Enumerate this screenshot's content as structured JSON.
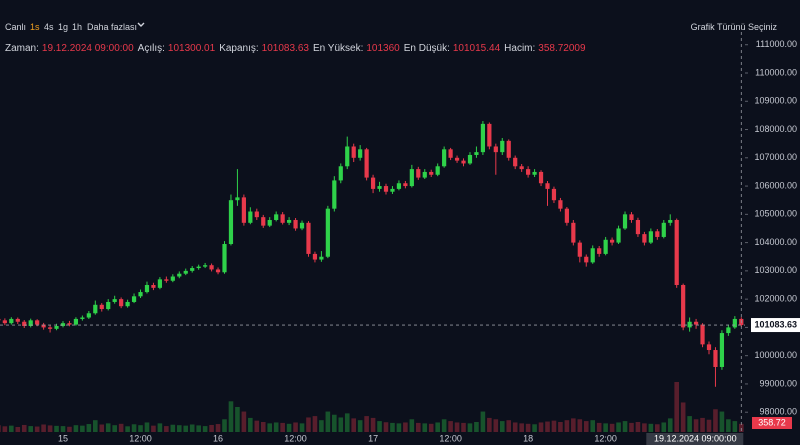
{
  "toolbar": {
    "live": "Canlı",
    "intervals": [
      "1s",
      "4s",
      "1g",
      "1h"
    ],
    "more": "Daha fazlası",
    "chart_type": "Grafik Türünü Seçiniz"
  },
  "info": [
    {
      "label": "Zaman:",
      "value": "19.12.2024 09:00:00"
    },
    {
      "label": "Açılış:",
      "value": "101300.01"
    },
    {
      "label": "Kapanış:",
      "value": "101083.63"
    },
    {
      "label": "En Yüksek:",
      "value": "101360"
    },
    {
      "label": "En Düşük:",
      "value": "101015.44"
    },
    {
      "label": "Hacim:",
      "value": "358.72009"
    }
  ],
  "crosshair": {
    "time_label": "19.12.2024 09:00:00",
    "price_label": "101083.63",
    "volume_label": "358.72"
  },
  "chart_data": {
    "type": "candlestick",
    "up_color": "#2fd24a",
    "down_color": "#e8394b",
    "categories": [
      null,
      null,
      null,
      null,
      null,
      null,
      null,
      null,
      null,
      null,
      "15",
      null,
      null,
      null,
      null,
      null,
      null,
      null,
      null,
      null,
      null,
      null,
      "12:00",
      null,
      null,
      null,
      null,
      null,
      null,
      null,
      null,
      null,
      null,
      null,
      "16",
      null,
      null,
      null,
      null,
      null,
      null,
      null,
      null,
      null,
      null,
      null,
      "12:00",
      null,
      null,
      null,
      null,
      null,
      null,
      null,
      null,
      null,
      null,
      null,
      "17",
      null,
      null,
      null,
      null,
      null,
      null,
      null,
      null,
      null,
      null,
      null,
      "12:00",
      null,
      null,
      null,
      null,
      null,
      null,
      null,
      null,
      null,
      null,
      null,
      "18",
      null,
      null,
      null,
      null,
      null,
      null,
      null,
      null,
      null,
      null,
      null,
      "12:00",
      null,
      null,
      null,
      null,
      null,
      null,
      null,
      null,
      null,
      null,
      null,
      null,
      null,
      null,
      null,
      null,
      null,
      null,
      null,
      null,
      null
    ],
    "open": [
      101300,
      101250,
      101150,
      101300,
      101200,
      101050,
      101250,
      101100,
      101000,
      100950,
      101050,
      101150,
      101100,
      101300,
      101350,
      101500,
      101800,
      101650,
      101900,
      102000,
      101750,
      101900,
      102100,
      102250,
      102500,
      102400,
      102700,
      102650,
      102800,
      102900,
      103000,
      103100,
      103150,
      103200,
      103050,
      102950,
      103950,
      105500,
      105600,
      104700,
      105100,
      104900,
      104600,
      104800,
      105000,
      104700,
      104800,
      104500,
      104700,
      103600,
      103400,
      103500,
      105200,
      106200,
      106700,
      107400,
      107000,
      107300,
      106300,
      105900,
      106000,
      105800,
      105900,
      106100,
      106000,
      106600,
      106300,
      106500,
      106400,
      106700,
      107300,
      107000,
      106900,
      106800,
      107100,
      107200,
      108200,
      107400,
      107200,
      107600,
      107000,
      106700,
      106600,
      106400,
      106500,
      106100,
      105900,
      105500,
      105200,
      104700,
      104000,
      103500,
      103300,
      103800,
      103600,
      104100,
      104000,
      104500,
      105000,
      104800,
      104300,
      104000,
      104400,
      104200,
      104700,
      104800,
      102500,
      101000,
      101200,
      101100,
      100400,
      100200,
      99600,
      100800,
      101000,
      101300.01
    ],
    "high": [
      101380,
      101320,
      101360,
      101350,
      101260,
      101310,
      101290,
      101160,
      101080,
      101130,
      101220,
      101230,
      101360,
      101420,
      101580,
      101950,
      101860,
      102000,
      102120,
      102060,
      101980,
      102200,
      102340,
      102620,
      102580,
      102780,
      102800,
      102880,
      102980,
      103080,
      103170,
      103220,
      103280,
      103260,
      103120,
      104050,
      105700,
      106600,
      105700,
      105250,
      105200,
      104980,
      104900,
      105100,
      105080,
      104900,
      104870,
      104780,
      104760,
      103680,
      103700,
      105300,
      106350,
      106800,
      107750,
      107500,
      107450,
      107350,
      106400,
      106150,
      106080,
      106000,
      106200,
      106180,
      106750,
      106680,
      106600,
      106580,
      106800,
      107400,
      107350,
      107080,
      106980,
      107200,
      107400,
      108300,
      108250,
      107500,
      107700,
      107650,
      107080,
      106780,
      106700,
      106600,
      106560,
      106180,
      105980,
      105580,
      105260,
      104800,
      104080,
      103580,
      103900,
      103880,
      104200,
      104180,
      104600,
      105100,
      105080,
      104880,
      104380,
      104500,
      104480,
      104800,
      105000,
      104850,
      102550,
      101350,
      101300,
      101150,
      100500,
      100300,
      100900,
      101100,
      101400,
      101360
    ],
    "low": [
      101180,
      101080,
      101100,
      101120,
      100980,
      101000,
      101040,
      100920,
      100820,
      100900,
      101000,
      101040,
      101060,
      101240,
      101300,
      101450,
      101560,
      101600,
      101840,
      101680,
      101700,
      101860,
      102040,
      102200,
      102320,
      102350,
      102580,
      102600,
      102740,
      102850,
      102940,
      103040,
      103100,
      102980,
      102880,
      102900,
      103900,
      105300,
      104600,
      104650,
      104800,
      104520,
      104550,
      104750,
      104640,
      104620,
      104420,
      104440,
      103500,
      103300,
      103320,
      103450,
      105100,
      106100,
      106600,
      106850,
      106900,
      106200,
      105750,
      105800,
      105700,
      105720,
      105850,
      105920,
      105950,
      106220,
      106250,
      106320,
      106350,
      106650,
      106920,
      106820,
      106700,
      106750,
      107000,
      107100,
      107300,
      106400,
      107100,
      106900,
      106600,
      106500,
      106300,
      106320,
      106000,
      105300,
      105400,
      105100,
      104600,
      103900,
      103300,
      103150,
      103250,
      103500,
      103550,
      103900,
      103950,
      104450,
      104700,
      104200,
      103900,
      103950,
      104100,
      104150,
      104600,
      102400,
      100900,
      100850,
      100950,
      100300,
      100050,
      98900,
      99500,
      100700,
      100950,
      101015.44
    ],
    "close": [
      101250,
      101150,
      101300,
      101200,
      101050,
      101250,
      101100,
      101000,
      100950,
      101050,
      101150,
      101100,
      101300,
      101350,
      101500,
      101800,
      101650,
      101900,
      102000,
      101750,
      101900,
      102100,
      102250,
      102500,
      102400,
      102700,
      102650,
      102800,
      102900,
      103000,
      103100,
      103150,
      103200,
      103050,
      102950,
      103950,
      105500,
      105600,
      104700,
      105100,
      104900,
      104600,
      104800,
      105000,
      104700,
      104800,
      104500,
      104700,
      103600,
      103400,
      103500,
      105200,
      106200,
      106700,
      107400,
      107000,
      107300,
      106300,
      105900,
      106000,
      105800,
      105900,
      106100,
      106000,
      106600,
      106300,
      106500,
      106400,
      106700,
      107300,
      107000,
      106900,
      106800,
      107100,
      107200,
      108200,
      107400,
      107200,
      107600,
      107000,
      106700,
      106600,
      106400,
      106500,
      106100,
      105900,
      105500,
      105200,
      104700,
      104000,
      103500,
      103300,
      103800,
      103600,
      104100,
      104000,
      104500,
      105000,
      104800,
      104300,
      104000,
      104400,
      104200,
      104700,
      104800,
      102500,
      101000,
      101200,
      101100,
      100400,
      100200,
      99600,
      100800,
      101000,
      101300.01,
      101083.63
    ],
    "volume": [
      300,
      250,
      280,
      220,
      310,
      260,
      240,
      330,
      290,
      270,
      260,
      230,
      300,
      280,
      350,
      520,
      330,
      380,
      300,
      360,
      250,
      340,
      300,
      420,
      280,
      380,
      260,
      320,
      300,
      280,
      330,
      290,
      260,
      310,
      350,
      560,
      1350,
      1100,
      900,
      620,
      500,
      440,
      380,
      420,
      400,
      360,
      420,
      380,
      640,
      700,
      520,
      900,
      760,
      640,
      820,
      600,
      520,
      700,
      620,
      480,
      430,
      400,
      380,
      420,
      560,
      400,
      380,
      360,
      420,
      560,
      480,
      420,
      400,
      380,
      440,
      900,
      620,
      560,
      480,
      520,
      420,
      380,
      360,
      340,
      420,
      460,
      500,
      440,
      520,
      600,
      560,
      480,
      520,
      400,
      380,
      360,
      420,
      480,
      400,
      440,
      380,
      360,
      340,
      420,
      600,
      2200,
      1300,
      700,
      560,
      620,
      540,
      1000,
      900,
      560,
      480,
      358.72
    ],
    "ylim": [
      97300,
      111450
    ],
    "yticks": [
      {
        "value": 98000,
        "label": "98000.00"
      },
      {
        "value": 99000,
        "label": "99000.00"
      },
      {
        "value": 100000,
        "label": "100000.00"
      },
      {
        "value": 101000,
        "label": "101000.00"
      },
      {
        "value": 102000,
        "label": "102000.00"
      },
      {
        "value": 103000,
        "label": "103000.00"
      },
      {
        "value": 104000,
        "label": "104000.00"
      },
      {
        "value": 105000,
        "label": "105000.00"
      },
      {
        "value": 106000,
        "label": "106000.00"
      },
      {
        "value": 107000,
        "label": "107000.00"
      },
      {
        "value": 108000,
        "label": "108000.00"
      },
      {
        "value": 109000,
        "label": "109000.00"
      },
      {
        "value": 110000,
        "label": "110000.00"
      },
      {
        "value": 111000,
        "label": "111000.00"
      }
    ],
    "grid": false
  }
}
